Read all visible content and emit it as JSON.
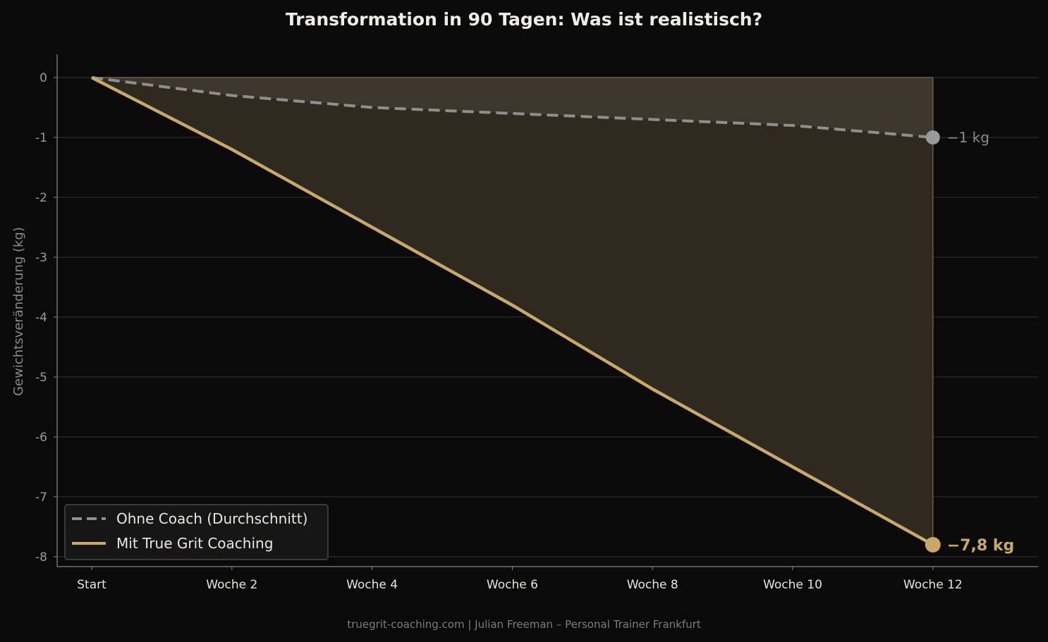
{
  "chart_data": {
    "type": "line",
    "title": "Transformation in 90 Tagen: Was ist realistisch?",
    "xlabel": "",
    "ylabel": "Gewichtsveränderung (kg)",
    "categories": [
      "Start",
      "Woche 2",
      "Woche 4",
      "Woche 6",
      "Woche 8",
      "Woche 10",
      "Woche 12"
    ],
    "yticks": [
      0,
      -1,
      -2,
      -3,
      -4,
      -5,
      -6,
      -7,
      -8
    ],
    "ylim": [
      -8.2,
      0.4
    ],
    "grid": true,
    "legend_position": "bottom-left",
    "series": [
      {
        "name": "Ohne Coach (Durchschnitt)",
        "values": [
          0,
          -0.3,
          -0.5,
          -0.6,
          -0.7,
          -0.8,
          -1.0
        ],
        "color": "#8f8f8f",
        "style": "dashed",
        "end_label": "−1 kg"
      },
      {
        "name": "Mit True Grit Coaching",
        "values": [
          0,
          -1.2,
          -2.5,
          -3.8,
          -5.2,
          -6.5,
          -7.8
        ],
        "color": "#c9a86a",
        "style": "solid",
        "end_label": "−7,8 kg"
      }
    ]
  },
  "footer": "truegrit-coaching.com | Julian Freeman – Personal Trainer Frankfurt"
}
